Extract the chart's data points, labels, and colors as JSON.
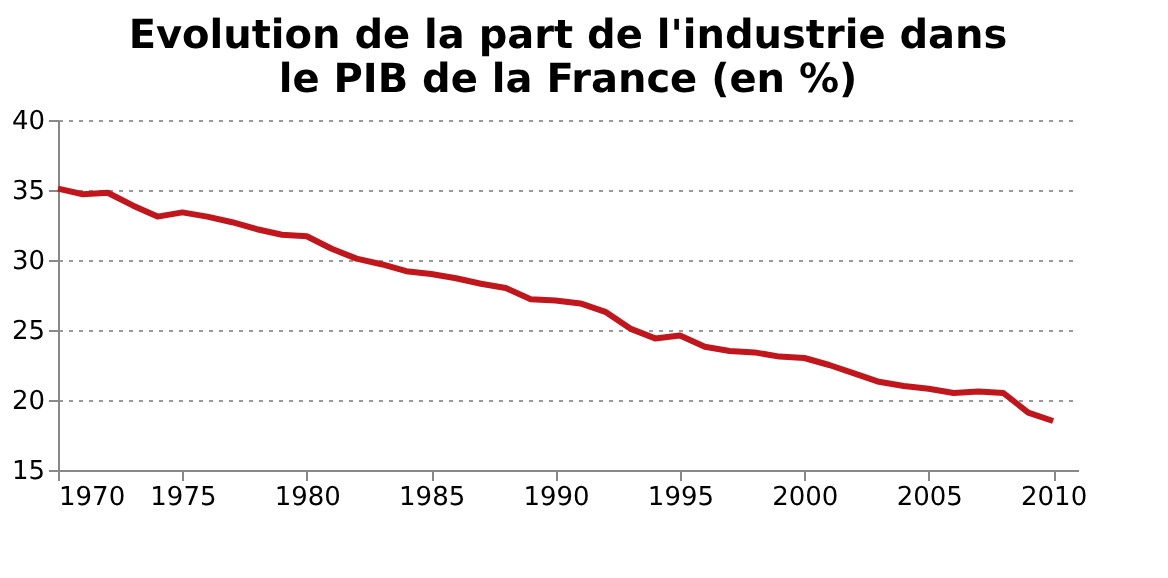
{
  "chart_data": {
    "type": "line",
    "title": "Evolution de la part de l'industrie dans\nle PIB de la France (en %)",
    "x": [
      1970,
      1971,
      1972,
      1973,
      1974,
      1975,
      1976,
      1977,
      1978,
      1979,
      1980,
      1981,
      1982,
      1983,
      1984,
      1985,
      1986,
      1987,
      1988,
      1989,
      1990,
      1991,
      1992,
      1993,
      1994,
      1995,
      1996,
      1997,
      1998,
      1999,
      2000,
      2001,
      2002,
      2003,
      2004,
      2005,
      2006,
      2007,
      2008,
      2009,
      2010
    ],
    "series": [
      {
        "color": "#c0161c",
        "values": [
          35.1,
          34.7,
          34.8,
          33.9,
          33.1,
          33.4,
          33.1,
          32.7,
          32.2,
          31.8,
          31.7,
          30.8,
          30.1,
          29.7,
          29.2,
          29.0,
          28.7,
          28.3,
          28.0,
          27.2,
          27.1,
          26.9,
          26.3,
          25.1,
          24.4,
          24.6,
          23.8,
          23.5,
          23.4,
          23.1,
          23.0,
          22.5,
          21.9,
          21.3,
          21.0,
          20.8,
          20.5,
          20.6,
          20.5,
          19.1,
          18.5
        ]
      }
    ],
    "xlim": [
      1970,
      2011
    ],
    "xticks": [
      1970,
      1975,
      1980,
      1985,
      1990,
      1995,
      2000,
      2005,
      2010
    ],
    "ylim": [
      15,
      40
    ],
    "yticks": [
      15,
      20,
      25,
      30,
      35,
      40
    ],
    "grid": "y",
    "line_style": "solid",
    "marker": "none"
  }
}
